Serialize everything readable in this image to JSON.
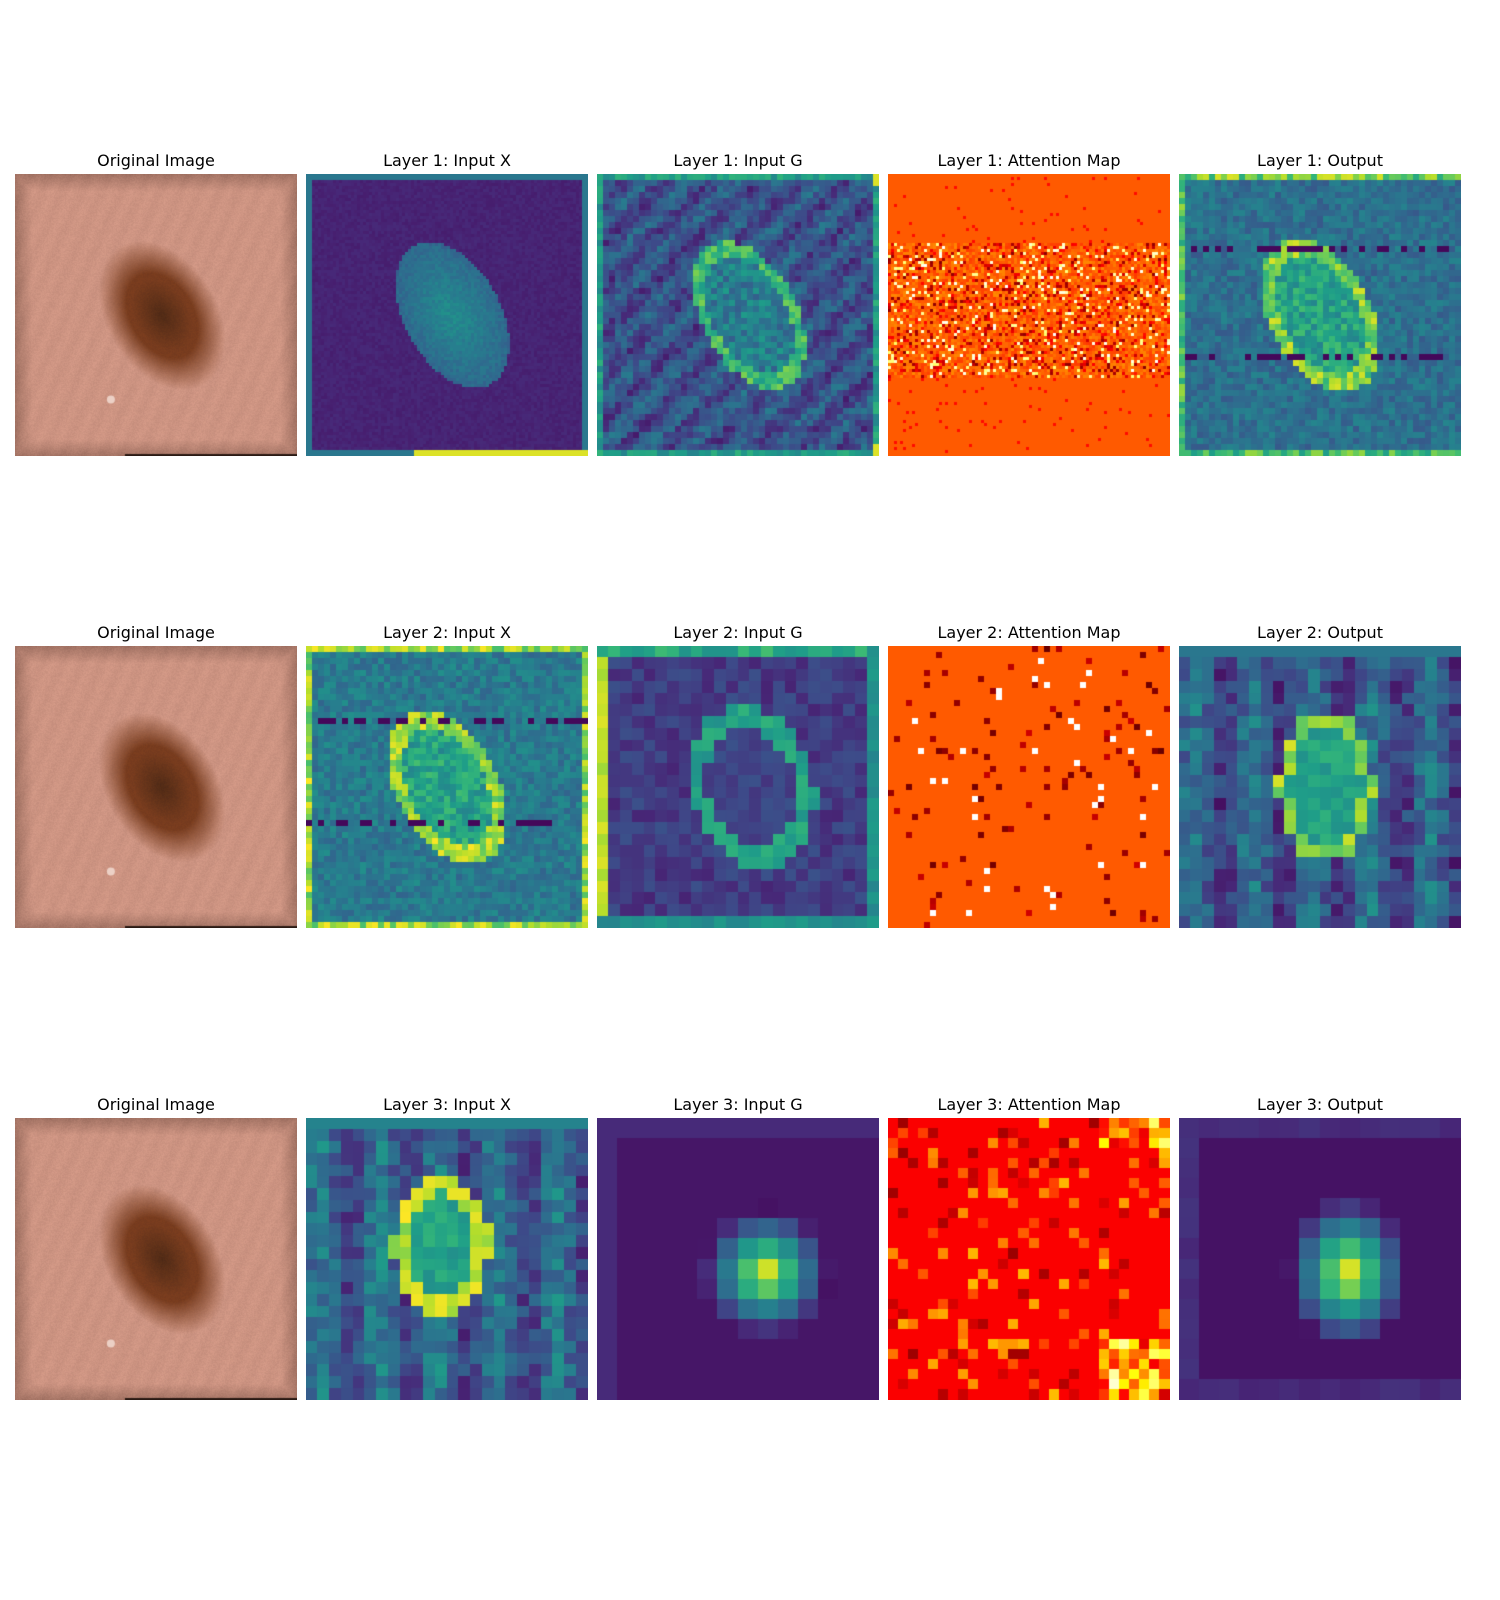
{
  "figure": {
    "rows": [
      {
        "panels": [
          {
            "title": "Original Image",
            "kind": "original",
            "colormap": "rgb"
          },
          {
            "title": "Layer 1: Input X",
            "kind": "input_x",
            "colormap": "viridis"
          },
          {
            "title": "Layer 1: Input G",
            "kind": "input_g",
            "colormap": "viridis"
          },
          {
            "title": "Layer 1: Attention Map",
            "kind": "attention",
            "colormap": "hot"
          },
          {
            "title": "Layer 1: Output",
            "kind": "output",
            "colormap": "viridis"
          }
        ]
      },
      {
        "panels": [
          {
            "title": "Original Image",
            "kind": "original",
            "colormap": "rgb"
          },
          {
            "title": "Layer 2: Input X",
            "kind": "input_x",
            "colormap": "viridis"
          },
          {
            "title": "Layer 2: Input G",
            "kind": "input_g",
            "colormap": "viridis"
          },
          {
            "title": "Layer 2: Attention Map",
            "kind": "attention",
            "colormap": "hot"
          },
          {
            "title": "Layer 2: Output",
            "kind": "output",
            "colormap": "viridis"
          }
        ]
      },
      {
        "panels": [
          {
            "title": "Original Image",
            "kind": "original",
            "colormap": "rgb"
          },
          {
            "title": "Layer 3: Input X",
            "kind": "input_x",
            "colormap": "viridis"
          },
          {
            "title": "Layer 3: Input G",
            "kind": "input_g",
            "colormap": "viridis"
          },
          {
            "title": "Layer 3: Attention Map",
            "kind": "attention",
            "colormap": "hot"
          },
          {
            "title": "Layer 3: Output",
            "kind": "output",
            "colormap": "viridis"
          }
        ]
      }
    ]
  }
}
